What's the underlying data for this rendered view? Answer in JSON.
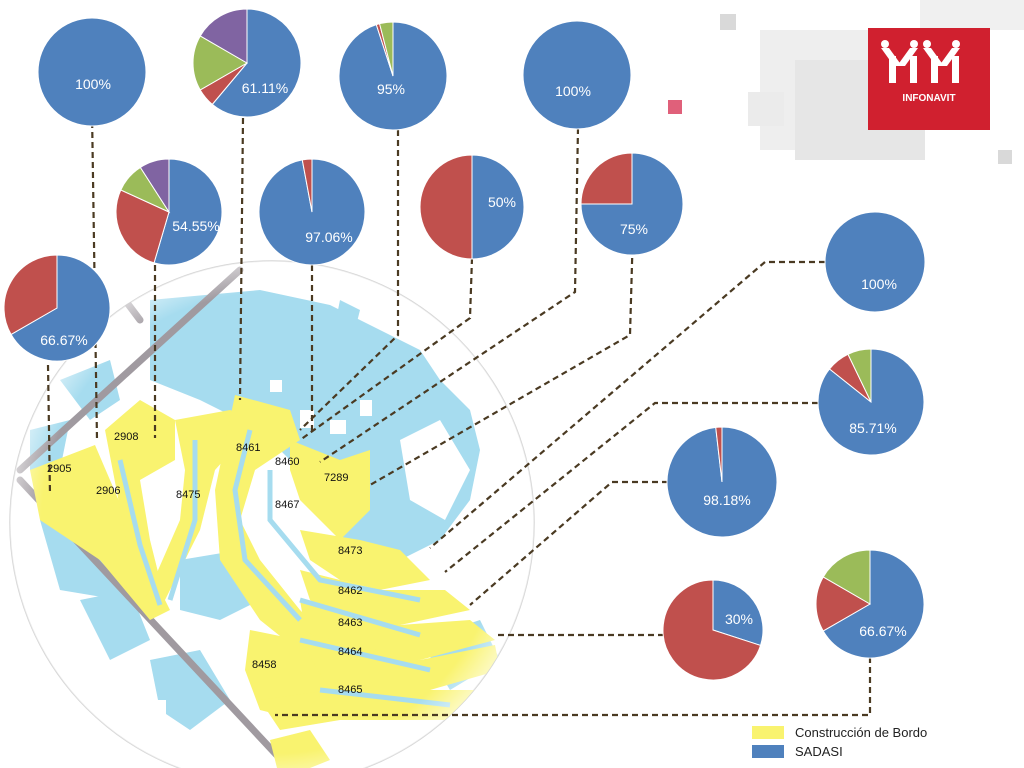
{
  "colors": {
    "sadasi": "#4f81bd",
    "red": "#c0504d",
    "green": "#9bbb59",
    "purple": "#8064a2",
    "construccion": "#f9f36f",
    "water": "#a6dcef",
    "road": "#a09aa0",
    "logo": "#d0202f"
  },
  "logo": {
    "text": "INFONAVIT"
  },
  "legend": {
    "construccion_label": "Construcción de Bordo",
    "sadasi_label": "SADASI"
  },
  "chart_data": {
    "type": "pie",
    "series_names": [
      "SADASI"
    ],
    "pies": [
      {
        "label": "100%",
        "slices": [
          {
            "color": "sadasi",
            "value": 100
          }
        ]
      },
      {
        "label": "61.11%",
        "slices": [
          {
            "color": "sadasi",
            "value": 61.11
          },
          {
            "color": "red",
            "value": 5.56
          },
          {
            "color": "green",
            "value": 16.67
          },
          {
            "color": "purple",
            "value": 16.66
          }
        ]
      },
      {
        "label": "95%",
        "slices": [
          {
            "color": "sadasi",
            "value": 95
          },
          {
            "color": "red",
            "value": 1
          },
          {
            "color": "green",
            "value": 4
          }
        ]
      },
      {
        "label": "100%",
        "slices": [
          {
            "color": "sadasi",
            "value": 100
          }
        ]
      },
      {
        "label": "54.55%",
        "slices": [
          {
            "color": "sadasi",
            "value": 54.55
          },
          {
            "color": "red",
            "value": 27.27
          },
          {
            "color": "green",
            "value": 9.09
          },
          {
            "color": "purple",
            "value": 9.09
          }
        ]
      },
      {
        "label": "97.06%",
        "slices": [
          {
            "color": "sadasi",
            "value": 97.06
          },
          {
            "color": "red",
            "value": 2.94
          }
        ]
      },
      {
        "label": "50%",
        "slices": [
          {
            "color": "sadasi",
            "value": 50
          },
          {
            "color": "red",
            "value": 50
          }
        ]
      },
      {
        "label": "75%",
        "slices": [
          {
            "color": "sadasi",
            "value": 75
          },
          {
            "color": "red",
            "value": 25
          }
        ]
      },
      {
        "label": "66.67%",
        "slices": [
          {
            "color": "sadasi",
            "value": 66.67
          },
          {
            "color": "red",
            "value": 33.33
          }
        ]
      },
      {
        "label": "100%",
        "slices": [
          {
            "color": "sadasi",
            "value": 100
          }
        ]
      },
      {
        "label": "85.71%",
        "slices": [
          {
            "color": "sadasi",
            "value": 85.71
          },
          {
            "color": "red",
            "value": 7.14
          },
          {
            "color": "green",
            "value": 7.15
          }
        ]
      },
      {
        "label": "98.18%",
        "slices": [
          {
            "color": "sadasi",
            "value": 98.18
          },
          {
            "color": "red",
            "value": 1.82
          }
        ]
      },
      {
        "label": "30%",
        "slices": [
          {
            "color": "sadasi",
            "value": 30
          },
          {
            "color": "red",
            "value": 70
          }
        ]
      },
      {
        "label": "66.67%",
        "slices": [
          {
            "color": "sadasi",
            "value": 66.67
          },
          {
            "color": "red",
            "value": 16.67
          },
          {
            "color": "green",
            "value": 16.66
          }
        ]
      }
    ]
  },
  "map": {
    "parcels": [
      "2908",
      "2905",
      "2906",
      "8475",
      "8461",
      "8460",
      "7289",
      "8467",
      "8473",
      "8462",
      "8463",
      "8464",
      "8458",
      "8465"
    ]
  }
}
